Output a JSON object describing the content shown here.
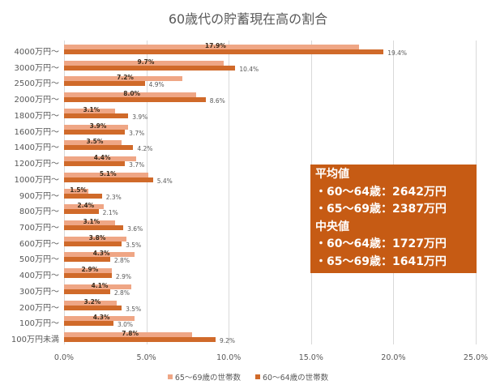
{
  "chart_data": {
    "type": "bar",
    "orientation": "horizontal",
    "title": "60歳代の貯蓄現在高の割合",
    "xlabel": "",
    "ylabel": "",
    "xlim": [
      0,
      25
    ],
    "x_ticks": [
      "0.0%",
      "5.0%",
      "10.0%",
      "15.0%",
      "20.0%",
      "25.0%"
    ],
    "grid": true,
    "legend_position": "bottom",
    "categories": [
      "4000万円～",
      "3000万円～",
      "2500万円～",
      "2000万円～",
      "1800万円～",
      "1600万円～",
      "1400万円～",
      "1200万円～",
      "1000万円～",
      "900万円～",
      "800万円～",
      "700万円～",
      "600万円～",
      "500万円～",
      "400万円～",
      "300万円～",
      "200万円～",
      "100万円～",
      "100万円未満"
    ],
    "series": [
      {
        "name": "65～69歳の世帯数",
        "color": "#efa685",
        "values": [
          17.9,
          9.7,
          7.2,
          8.0,
          3.1,
          3.9,
          3.5,
          4.4,
          5.1,
          1.5,
          2.4,
          3.1,
          3.8,
          4.3,
          2.9,
          4.1,
          3.2,
          4.3,
          7.8
        ]
      },
      {
        "name": "60～64歳の世帯数",
        "color": "#d06a2a",
        "values": [
          19.4,
          10.4,
          4.9,
          8.6,
          3.9,
          3.7,
          4.2,
          3.7,
          5.4,
          2.3,
          2.1,
          3.6,
          3.5,
          2.8,
          2.9,
          2.8,
          3.5,
          3.0,
          9.2
        ]
      }
    ],
    "annotation_box": {
      "color": "#c65b14",
      "lines": [
        "平均値",
        "・60～64歳：2642万円",
        "・65～69歳：2387万円",
        "中央値",
        "・60～64歳：1727万円",
        "・65～69歳：1641万円"
      ]
    }
  }
}
